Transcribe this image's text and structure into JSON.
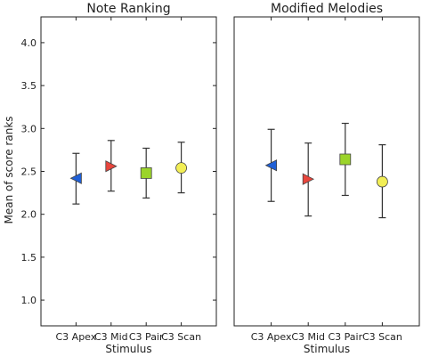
{
  "chart_data": [
    {
      "type": "scatter",
      "title": "Note Ranking",
      "xlabel": "Stimulus",
      "ylabel": "Mean of score ranks",
      "ylim": [
        0.7,
        4.3
      ],
      "yticks": [
        "1.0",
        "1.5",
        "2.0",
        "2.5",
        "3.0",
        "3.5",
        "4.0"
      ],
      "categories": [
        "C3 Apex",
        "C3 Mid",
        "C3 Pair",
        "C3 Scan"
      ],
      "points": [
        {
          "category": "C3 Apex",
          "mean": 2.42,
          "lower": 2.12,
          "upper": 2.71,
          "marker": "triangle-left",
          "color": "#1f5fd6"
        },
        {
          "category": "C3 Mid",
          "mean": 2.56,
          "lower": 2.27,
          "upper": 2.86,
          "marker": "triangle-right",
          "color": "#e8453c"
        },
        {
          "category": "C3 Pair",
          "mean": 2.48,
          "lower": 2.19,
          "upper": 2.77,
          "marker": "square",
          "color": "#9bd42a"
        },
        {
          "category": "C3 Scan",
          "mean": 2.54,
          "lower": 2.25,
          "upper": 2.84,
          "marker": "circle",
          "color": "#f2ee55"
        }
      ]
    },
    {
      "type": "scatter",
      "title": "Modified Melodies",
      "xlabel": "Stimulus",
      "ylabel": "",
      "ylim": [
        0.7,
        4.3
      ],
      "yticks": [],
      "categories": [
        "C3 Apex",
        "C3 Mid",
        "C3 Pair",
        "C3 Scan"
      ],
      "points": [
        {
          "category": "C3 Apex",
          "mean": 2.57,
          "lower": 2.15,
          "upper": 2.99,
          "marker": "triangle-left",
          "color": "#1f5fd6"
        },
        {
          "category": "C3 Mid",
          "mean": 2.41,
          "lower": 1.98,
          "upper": 2.83,
          "marker": "triangle-right",
          "color": "#e8453c"
        },
        {
          "category": "C3 Pair",
          "mean": 2.64,
          "lower": 2.22,
          "upper": 3.06,
          "marker": "square",
          "color": "#9bd42a"
        },
        {
          "category": "C3 Scan",
          "mean": 2.38,
          "lower": 1.96,
          "upper": 2.81,
          "marker": "circle",
          "color": "#f2ee55"
        }
      ]
    }
  ]
}
